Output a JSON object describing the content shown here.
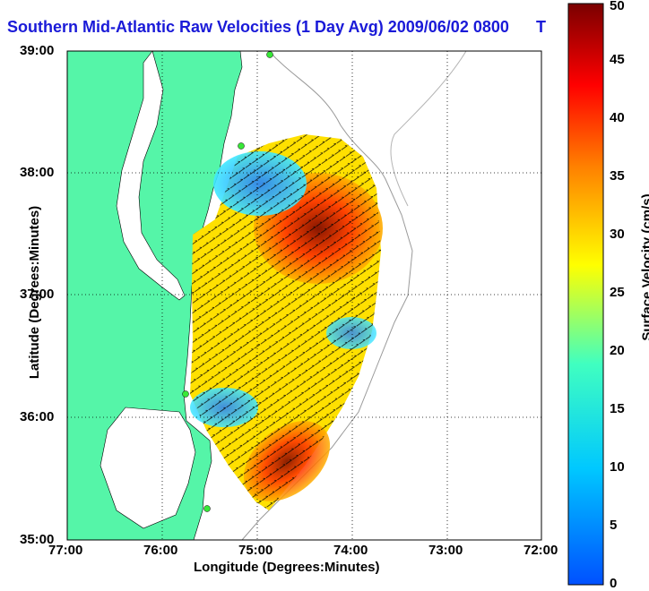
{
  "title": "Southern Mid-Atlantic Raw Velocities (1 Day Avg) 2009/06/02 0800",
  "title_tail": "T",
  "xlabel": "Longitude (Degrees:Minutes)",
  "ylabel": "Latitude (Degrees:Minutes)",
  "colorbar": {
    "label": "Surface Velocity (cm/s)",
    "ticks": [
      "0",
      "5",
      "10",
      "15",
      "20",
      "25",
      "30",
      "35",
      "40",
      "45",
      "50"
    ],
    "min": 0,
    "max": 50,
    "colormap": [
      "#0050ff",
      "#00c8ff",
      "#40ffc0",
      "#ffff00",
      "#ff8000",
      "#ff0000",
      "#7a0000"
    ]
  },
  "map": {
    "x_ticks": [
      "77:00",
      "76:00",
      "75:00",
      "74:00",
      "73:00",
      "72:00"
    ],
    "y_ticks": [
      "39:00",
      "38:00",
      "37:00",
      "36:00",
      "35:00"
    ],
    "lon_range": [
      -77,
      -72
    ],
    "lat_range": [
      35,
      39
    ],
    "land_color": "#55f5a8",
    "grid": "dotted"
  }
}
